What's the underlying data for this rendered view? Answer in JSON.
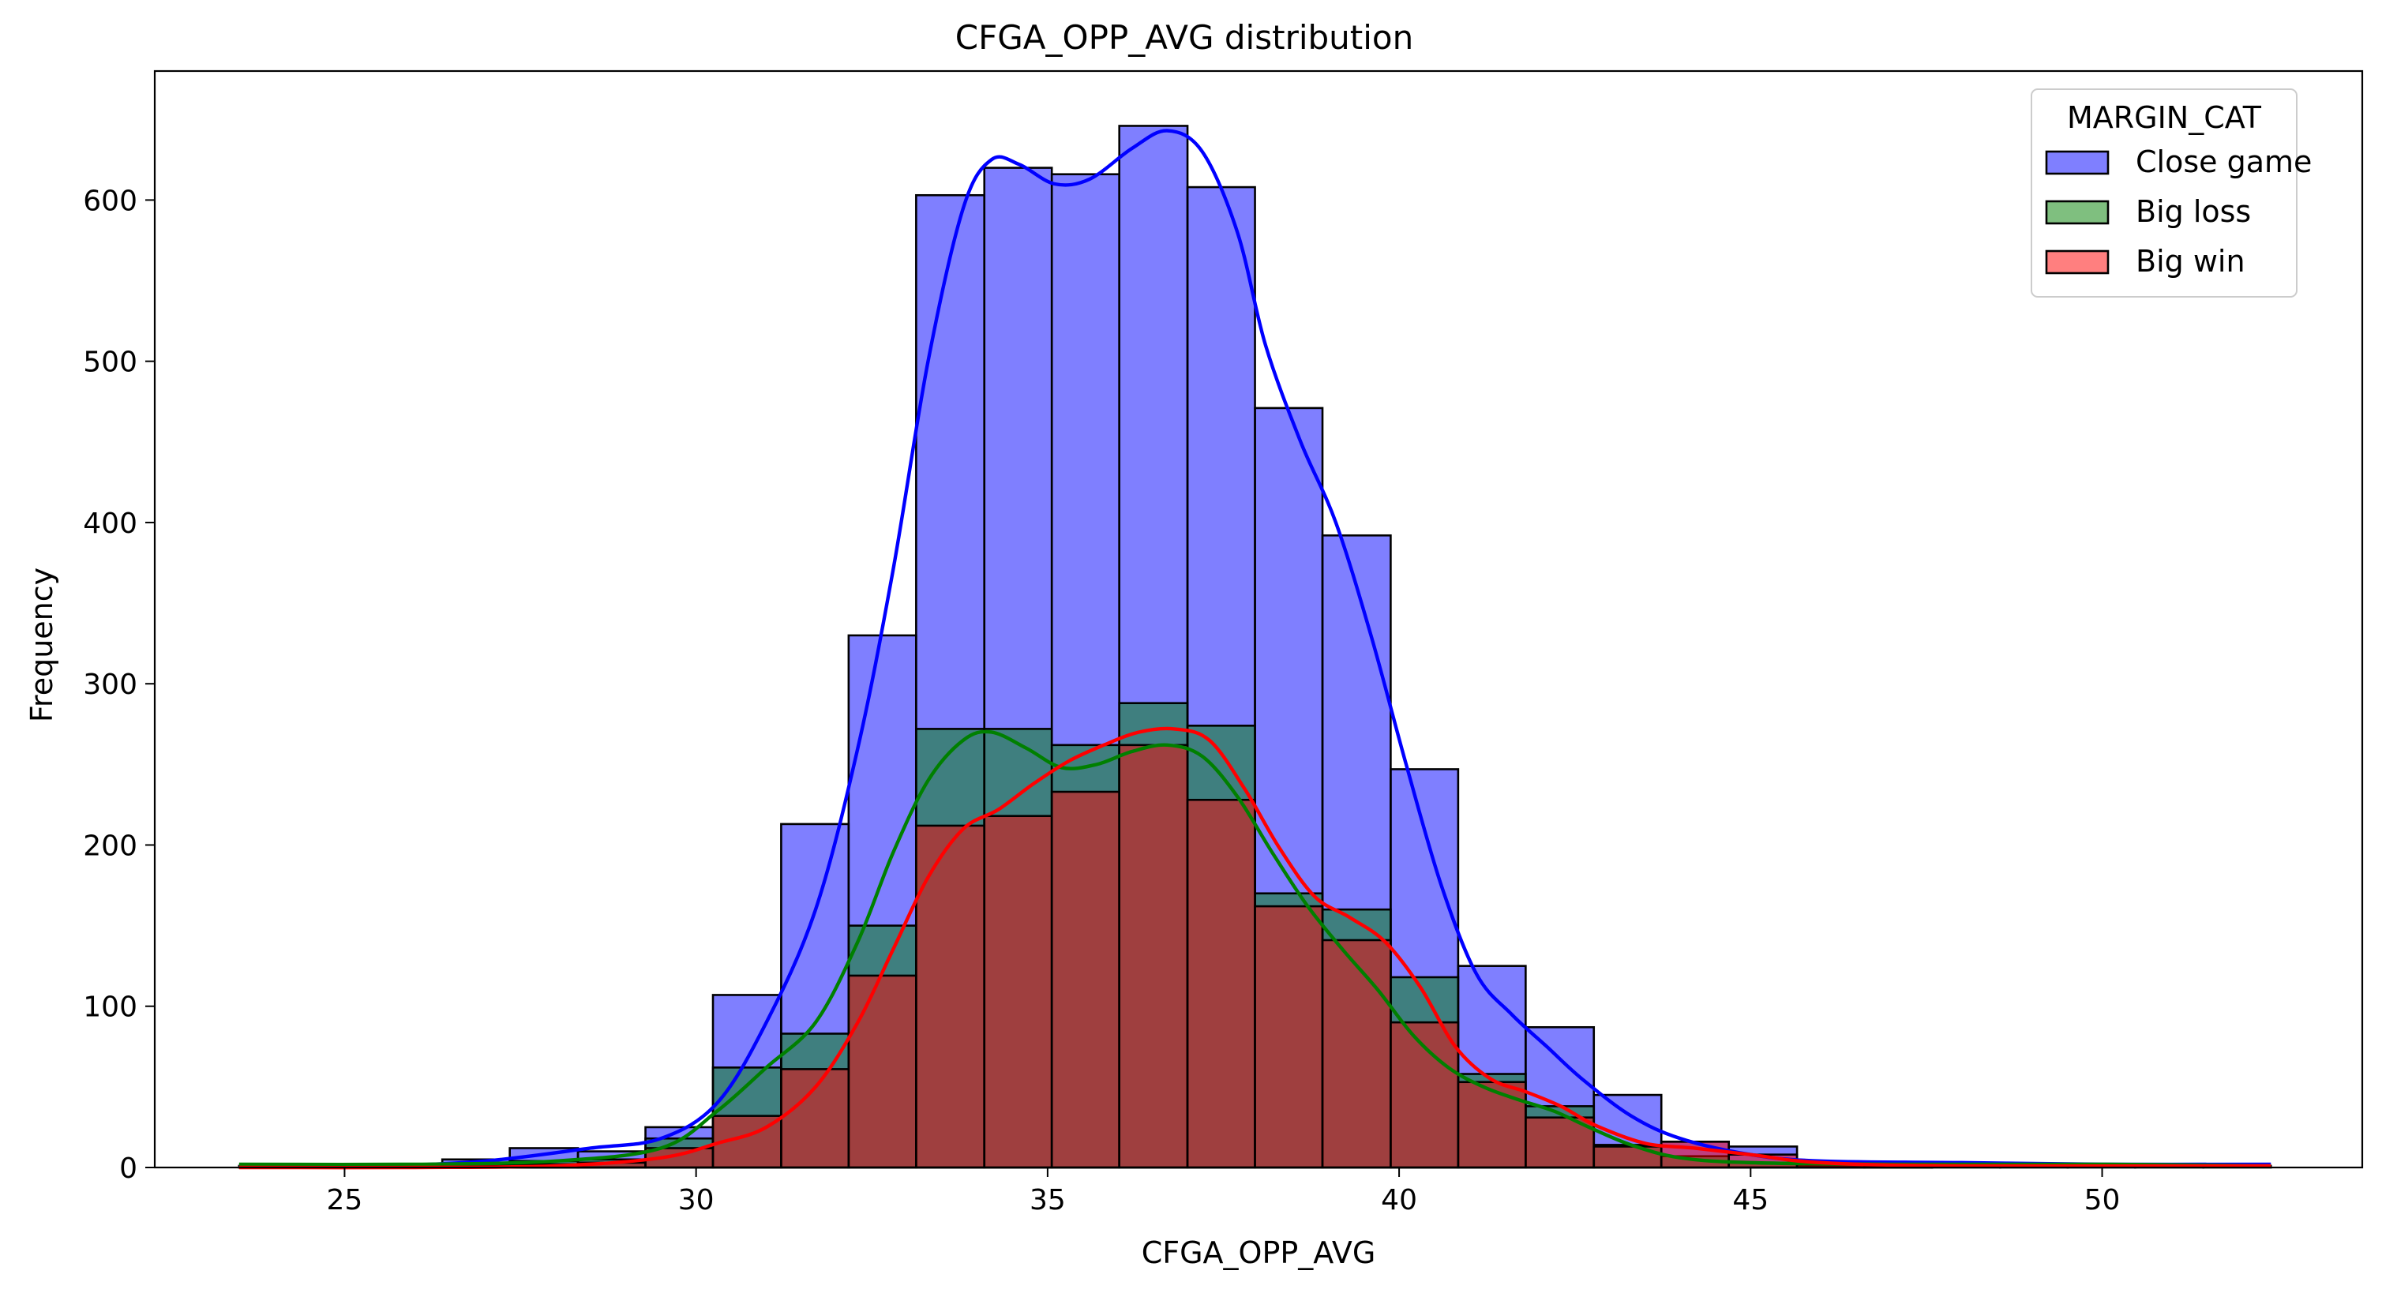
{
  "chart_data": {
    "type": "histogram",
    "title": "CFGA_OPP_AVG distribution",
    "xlabel": "CFGA_OPP_AVG",
    "ylabel": "Frequency",
    "xlim": [
      22.3,
      53.7
    ],
    "ylim": [
      0,
      680
    ],
    "xticks": [
      25,
      30,
      35,
      40,
      45,
      50
    ],
    "yticks": [
      0,
      100,
      200,
      300,
      400,
      500,
      600
    ],
    "bin_edges": [
      23.5,
      24.46,
      25.43,
      26.39,
      27.35,
      28.32,
      29.28,
      30.24,
      31.21,
      32.17,
      33.13,
      34.1,
      35.06,
      36.02,
      36.99,
      37.95,
      38.91,
      39.88,
      40.84,
      41.8,
      42.77,
      43.73,
      44.69,
      45.66,
      46.62,
      47.58,
      48.55,
      49.51,
      50.47,
      51.44,
      52.4
    ],
    "legend": {
      "title": "MARGIN_CAT",
      "position": "top-right"
    },
    "series": [
      {
        "name": "Close game",
        "color": "#0000ff",
        "counts": [
          1,
          1,
          1,
          5,
          12,
          10,
          25,
          107,
          213,
          330,
          603,
          620,
          616,
          646,
          608,
          471,
          392,
          247,
          125,
          87,
          45,
          16,
          13,
          3,
          2,
          1,
          1,
          1,
          1,
          1
        ],
        "kde": [
          [
            23.5,
            1
          ],
          [
            25.5,
            1
          ],
          [
            27,
            4
          ],
          [
            28.5,
            12
          ],
          [
            29.5,
            18
          ],
          [
            30.3,
            40
          ],
          [
            31,
            90
          ],
          [
            31.7,
            160
          ],
          [
            32.3,
            260
          ],
          [
            32.8,
            370
          ],
          [
            33.3,
            500
          ],
          [
            33.8,
            595
          ],
          [
            34.2,
            625
          ],
          [
            34.6,
            622
          ],
          [
            35.1,
            610
          ],
          [
            35.6,
            613
          ],
          [
            36.2,
            632
          ],
          [
            36.7,
            643
          ],
          [
            37.2,
            630
          ],
          [
            37.7,
            580
          ],
          [
            38.1,
            510
          ],
          [
            38.6,
            450
          ],
          [
            39.1,
            400
          ],
          [
            39.6,
            330
          ],
          [
            40.1,
            250
          ],
          [
            40.6,
            175
          ],
          [
            41.1,
            120
          ],
          [
            41.6,
            95
          ],
          [
            42.1,
            75
          ],
          [
            42.6,
            55
          ],
          [
            43.3,
            32
          ],
          [
            44,
            18
          ],
          [
            45,
            8
          ],
          [
            46,
            4
          ],
          [
            48,
            3
          ],
          [
            50,
            2
          ],
          [
            52.4,
            2
          ]
        ]
      },
      {
        "name": "Big loss",
        "color": "#008000",
        "counts": [
          0,
          0,
          0,
          2,
          4,
          5,
          18,
          62,
          83,
          150,
          272,
          272,
          262,
          288,
          274,
          170,
          160,
          118,
          58,
          38,
          14,
          7,
          3,
          1,
          1,
          0,
          0,
          0,
          0,
          0
        ],
        "kde": [
          [
            23.5,
            2
          ],
          [
            26,
            2
          ],
          [
            28,
            4
          ],
          [
            29.5,
            12
          ],
          [
            30.3,
            35
          ],
          [
            31,
            62
          ],
          [
            31.7,
            90
          ],
          [
            32.3,
            140
          ],
          [
            32.8,
            195
          ],
          [
            33.3,
            240
          ],
          [
            33.8,
            265
          ],
          [
            34.2,
            270
          ],
          [
            34.7,
            260
          ],
          [
            35.2,
            248
          ],
          [
            35.7,
            250
          ],
          [
            36.2,
            258
          ],
          [
            36.7,
            262
          ],
          [
            37.2,
            255
          ],
          [
            37.7,
            230
          ],
          [
            38.2,
            195
          ],
          [
            38.7,
            162
          ],
          [
            39.2,
            135
          ],
          [
            39.7,
            110
          ],
          [
            40.2,
            82
          ],
          [
            40.7,
            62
          ],
          [
            41.2,
            50
          ],
          [
            41.7,
            42
          ],
          [
            42.2,
            35
          ],
          [
            42.7,
            25
          ],
          [
            43.3,
            14
          ],
          [
            44,
            6
          ],
          [
            45,
            3
          ],
          [
            47,
            2
          ],
          [
            50,
            2
          ],
          [
            52.4,
            1
          ]
        ]
      },
      {
        "name": "Big win",
        "color": "#ff0000",
        "counts": [
          0,
          0,
          0,
          1,
          2,
          3,
          12,
          32,
          61,
          119,
          212,
          218,
          233,
          262,
          228,
          162,
          141,
          90,
          53,
          31,
          13,
          16,
          8,
          2,
          1,
          0,
          0,
          0,
          0,
          0
        ],
        "kde": [
          [
            23.5,
            0
          ],
          [
            26,
            0
          ],
          [
            28,
            1
          ],
          [
            29.5,
            6
          ],
          [
            30.3,
            15
          ],
          [
            31,
            25
          ],
          [
            31.7,
            50
          ],
          [
            32.3,
            90
          ],
          [
            32.8,
            135
          ],
          [
            33.3,
            180
          ],
          [
            33.8,
            210
          ],
          [
            34.3,
            222
          ],
          [
            34.8,
            238
          ],
          [
            35.3,
            252
          ],
          [
            35.8,
            262
          ],
          [
            36.3,
            270
          ],
          [
            36.8,
            272
          ],
          [
            37.3,
            265
          ],
          [
            37.8,
            235
          ],
          [
            38.3,
            198
          ],
          [
            38.8,
            168
          ],
          [
            39.3,
            155
          ],
          [
            39.8,
            140
          ],
          [
            40.3,
            112
          ],
          [
            40.8,
            75
          ],
          [
            41.3,
            55
          ],
          [
            41.8,
            47
          ],
          [
            42.3,
            38
          ],
          [
            42.8,
            26
          ],
          [
            43.5,
            15
          ],
          [
            44.2,
            12
          ],
          [
            45,
            8
          ],
          [
            46,
            3
          ],
          [
            48,
            1
          ],
          [
            52.4,
            1
          ]
        ]
      }
    ]
  }
}
